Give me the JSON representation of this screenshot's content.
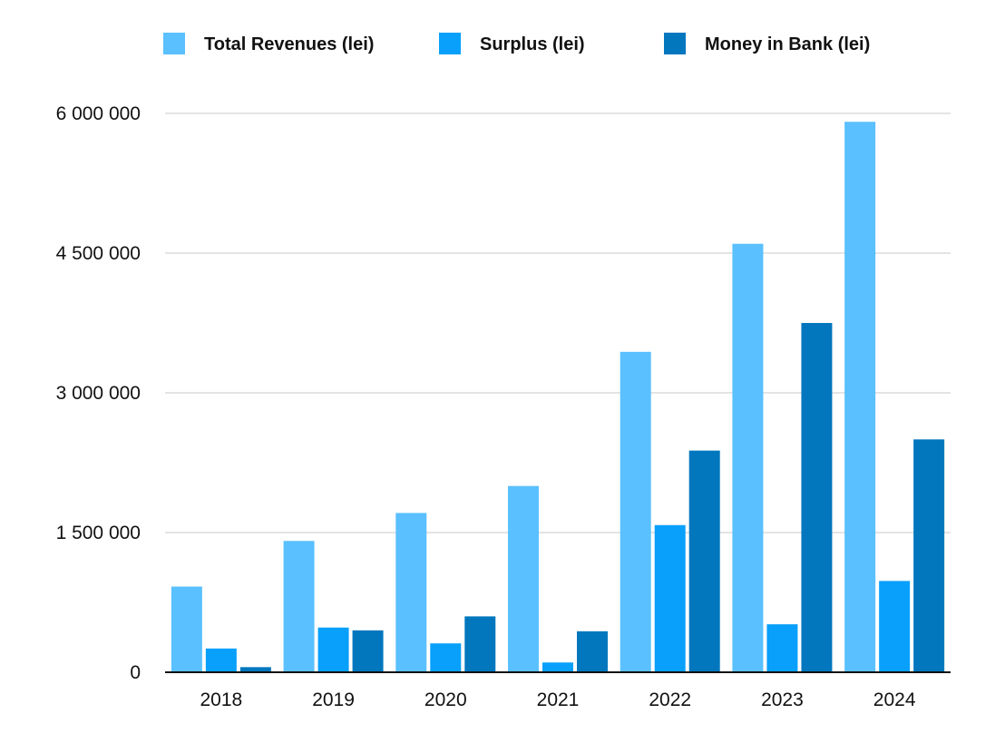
{
  "chart_data": {
    "type": "bar",
    "categories": [
      "2018",
      "2019",
      "2020",
      "2021",
      "2022",
      "2023",
      "2024"
    ],
    "series": [
      {
        "name": "Total Revenues (lei)",
        "color": "#5ac0ff",
        "values": [
          920000,
          1410000,
          1710000,
          2000000,
          3440000,
          4600000,
          5910000
        ]
      },
      {
        "name": "Surplus (lei)",
        "color": "#08a0fb",
        "values": [
          255000,
          480000,
          310000,
          105000,
          1580000,
          515000,
          980000
        ]
      },
      {
        "name": "Money in Bank (lei)",
        "color": "#0277be",
        "values": [
          55000,
          450000,
          600000,
          440000,
          2380000,
          3750000,
          2500000
        ]
      }
    ],
    "ylim": [
      0,
      6000000
    ],
    "yticks": [
      0,
      1500000,
      3000000,
      4500000,
      6000000
    ],
    "ytick_labels": [
      "0",
      "1 500 000",
      "3 000 000",
      "4 500 000",
      "6 000 000"
    ],
    "grid": true,
    "legend_position": "top",
    "title": "",
    "xlabel": "",
    "ylabel": ""
  }
}
